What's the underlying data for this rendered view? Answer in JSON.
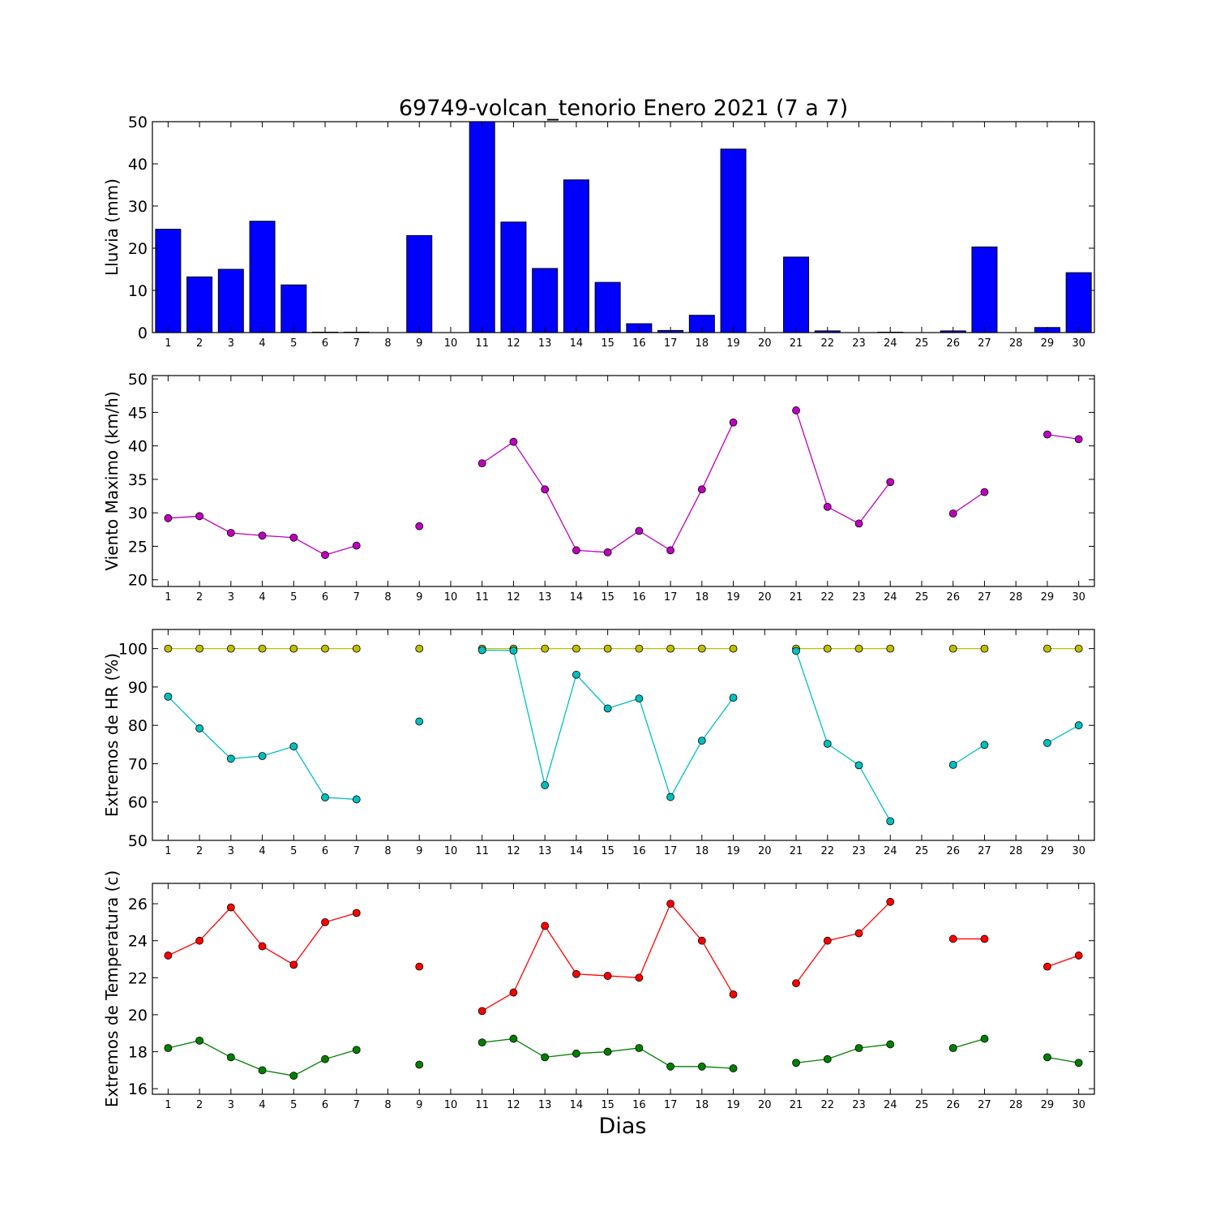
{
  "figure": {
    "title": "69749-volcan_tenorio Enero 2021  (7 a 7)",
    "xlabel": "Dias"
  },
  "chart_data": [
    {
      "type": "bar",
      "ylabel": "Lluvia (mm)",
      "ylim": [
        0,
        50
      ],
      "yticks": [
        0,
        10,
        20,
        30,
        40,
        50
      ],
      "x": [
        1,
        2,
        3,
        4,
        5,
        6,
        7,
        8,
        9,
        10,
        11,
        12,
        13,
        14,
        15,
        16,
        17,
        18,
        19,
        20,
        21,
        22,
        23,
        24,
        25,
        26,
        27,
        28,
        29,
        30
      ],
      "xticks": [
        "1",
        "2",
        "3",
        "4",
        "5",
        "6",
        "7",
        "8",
        "9",
        "10",
        "11",
        "12",
        "13",
        "14",
        "15",
        "16",
        "17",
        "18",
        "19",
        "20",
        "21",
        "22",
        "23",
        "24",
        "25",
        "26",
        "27",
        "28",
        "29",
        "30"
      ],
      "values": [
        24.5,
        13.2,
        15.0,
        26.4,
        11.3,
        0.1,
        0.1,
        0,
        23.0,
        0,
        50.0,
        26.2,
        15.2,
        36.2,
        11.9,
        2.1,
        0.5,
        4.1,
        43.5,
        0,
        17.9,
        0.4,
        0,
        0.1,
        0,
        0.4,
        20.3,
        0,
        1.2,
        14.2
      ],
      "color": "#0000ff",
      "grid": false
    },
    {
      "type": "line",
      "ylabel": "Viento Maximo (km/h)",
      "ylim": [
        19,
        50.5
      ],
      "yticks": [
        20,
        25,
        30,
        35,
        40,
        45,
        50
      ],
      "x": [
        1,
        2,
        3,
        4,
        5,
        6,
        7,
        8,
        9,
        10,
        11,
        12,
        13,
        14,
        15,
        16,
        17,
        18,
        19,
        20,
        21,
        22,
        23,
        24,
        25,
        26,
        27,
        28,
        29,
        30
      ],
      "xticks": [
        "1",
        "2",
        "3",
        "4",
        "5",
        "6",
        "7",
        "8",
        "9",
        "10",
        "11",
        "12",
        "13",
        "14",
        "15",
        "16",
        "17",
        "18",
        "19",
        "20",
        "21",
        "22",
        "23",
        "24",
        "25",
        "26",
        "27",
        "28",
        "29",
        "30"
      ],
      "series": [
        {
          "color": "#bf00bf",
          "values": [
            29.2,
            29.5,
            27.0,
            26.6,
            26.3,
            23.7,
            25.1,
            null,
            28.0,
            null,
            37.4,
            40.6,
            33.5,
            24.4,
            24.1,
            27.3,
            24.4,
            33.5,
            43.5,
            null,
            45.3,
            30.9,
            28.4,
            34.6,
            null,
            29.9,
            33.1,
            null,
            41.7,
            41.0
          ]
        }
      ],
      "grid": false
    },
    {
      "type": "line",
      "ylabel": "Extremos de HR (%)",
      "ylim": [
        50,
        105
      ],
      "yticks": [
        50,
        60,
        70,
        80,
        90,
        100
      ],
      "x": [
        1,
        2,
        3,
        4,
        5,
        6,
        7,
        8,
        9,
        10,
        11,
        12,
        13,
        14,
        15,
        16,
        17,
        18,
        19,
        20,
        21,
        22,
        23,
        24,
        25,
        26,
        27,
        28,
        29,
        30
      ],
      "xticks": [
        "1",
        "2",
        "3",
        "4",
        "5",
        "6",
        "7",
        "8",
        "9",
        "10",
        "11",
        "12",
        "13",
        "14",
        "15",
        "16",
        "17",
        "18",
        "19",
        "20",
        "21",
        "22",
        "23",
        "24",
        "25",
        "26",
        "27",
        "28",
        "29",
        "30"
      ],
      "series": [
        {
          "color": "#bfbf00",
          "values": [
            100,
            100,
            100,
            100,
            100,
            100,
            100,
            null,
            100,
            null,
            100,
            100,
            100,
            100,
            100,
            100,
            100,
            100,
            100,
            null,
            100,
            100,
            100,
            100,
            null,
            100,
            100,
            null,
            100,
            100
          ]
        },
        {
          "color": "#00bfbf",
          "values": [
            87.5,
            79.2,
            71.3,
            72.0,
            74.5,
            61.2,
            60.7,
            null,
            81.0,
            null,
            99.6,
            99.5,
            64.4,
            93.2,
            84.4,
            87.0,
            61.3,
            76.0,
            87.2,
            null,
            99.4,
            75.2,
            69.6,
            55.0,
            null,
            69.7,
            74.9,
            null,
            75.4,
            80.0
          ]
        }
      ],
      "grid": false
    },
    {
      "type": "line",
      "ylabel": "Extremos de Temperatura (c)",
      "ylim": [
        15.7,
        27.1
      ],
      "yticks": [
        16,
        18,
        20,
        22,
        24,
        26
      ],
      "x": [
        1,
        2,
        3,
        4,
        5,
        6,
        7,
        8,
        9,
        10,
        11,
        12,
        13,
        14,
        15,
        16,
        17,
        18,
        19,
        20,
        21,
        22,
        23,
        24,
        25,
        26,
        27,
        28,
        29,
        30
      ],
      "xticks": [
        "1",
        "2",
        "3",
        "4",
        "5",
        "6",
        "7",
        "8",
        "9",
        "10",
        "11",
        "12",
        "13",
        "14",
        "15",
        "16",
        "17",
        "18",
        "19",
        "20",
        "21",
        "22",
        "23",
        "24",
        "25",
        "26",
        "27",
        "28",
        "29",
        "30"
      ],
      "series": [
        {
          "color": "#ff0000",
          "values": [
            23.2,
            24.0,
            25.8,
            23.7,
            22.7,
            25.0,
            25.5,
            null,
            22.6,
            null,
            20.2,
            21.2,
            24.8,
            22.2,
            22.1,
            22.0,
            26.0,
            24.0,
            21.1,
            null,
            21.7,
            24.0,
            24.4,
            26.1,
            null,
            24.1,
            24.1,
            null,
            22.6,
            23.2
          ]
        },
        {
          "color": "#008000",
          "values": [
            18.2,
            18.6,
            17.7,
            17.0,
            16.7,
            17.6,
            18.1,
            null,
            17.3,
            null,
            18.5,
            18.7,
            17.7,
            17.9,
            18.0,
            18.2,
            17.2,
            17.2,
            17.1,
            null,
            17.4,
            17.6,
            18.2,
            18.4,
            null,
            18.2,
            18.7,
            null,
            17.7,
            17.4
          ]
        }
      ],
      "grid": false
    }
  ]
}
